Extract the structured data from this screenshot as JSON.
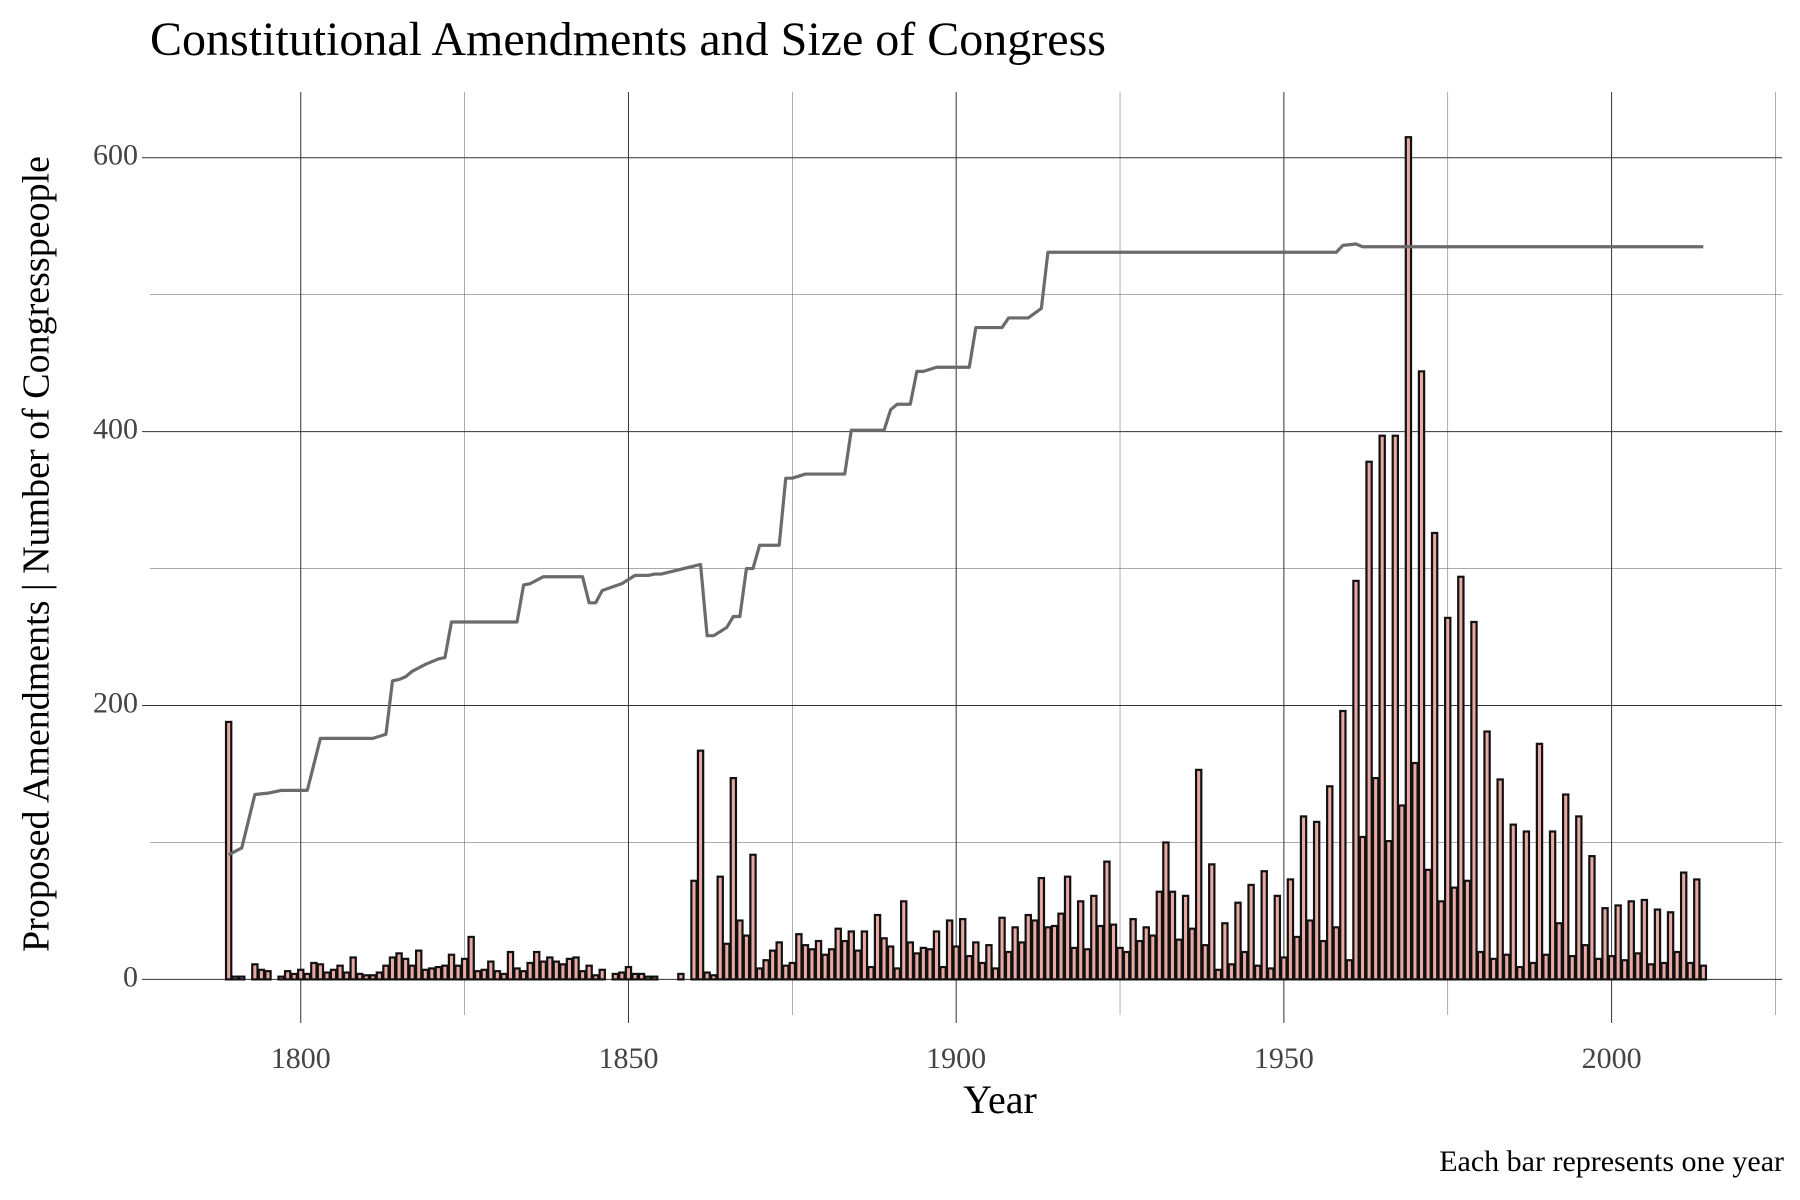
{
  "chart_data": {
    "type": "bar",
    "title": "Constitutional Amendments and Size of Congress",
    "xlabel": "Year",
    "ylabel": "Proposed Amendments | Number of Congresspeople",
    "caption": "Each bar represents one year",
    "x": [
      1789,
      1790,
      1791,
      1792,
      1793,
      1794,
      1795,
      1796,
      1797,
      1798,
      1799,
      1800,
      1801,
      1802,
      1803,
      1804,
      1805,
      1806,
      1807,
      1808,
      1809,
      1810,
      1811,
      1812,
      1813,
      1814,
      1815,
      1816,
      1817,
      1818,
      1819,
      1820,
      1821,
      1822,
      1823,
      1824,
      1825,
      1826,
      1827,
      1828,
      1829,
      1830,
      1831,
      1832,
      1833,
      1834,
      1835,
      1836,
      1837,
      1838,
      1839,
      1840,
      1841,
      1842,
      1843,
      1844,
      1845,
      1846,
      1847,
      1848,
      1849,
      1850,
      1851,
      1852,
      1853,
      1854,
      1855,
      1856,
      1857,
      1858,
      1859,
      1860,
      1861,
      1862,
      1863,
      1864,
      1865,
      1866,
      1867,
      1868,
      1869,
      1870,
      1871,
      1872,
      1873,
      1874,
      1875,
      1876,
      1877,
      1878,
      1879,
      1880,
      1881,
      1882,
      1883,
      1884,
      1885,
      1886,
      1887,
      1888,
      1889,
      1890,
      1891,
      1892,
      1893,
      1894,
      1895,
      1896,
      1897,
      1898,
      1899,
      1900,
      1901,
      1902,
      1903,
      1904,
      1905,
      1906,
      1907,
      1908,
      1909,
      1910,
      1911,
      1912,
      1913,
      1914,
      1915,
      1916,
      1917,
      1918,
      1919,
      1920,
      1921,
      1922,
      1923,
      1924,
      1925,
      1926,
      1927,
      1928,
      1929,
      1930,
      1931,
      1932,
      1933,
      1934,
      1935,
      1936,
      1937,
      1938,
      1939,
      1940,
      1941,
      1942,
      1943,
      1944,
      1945,
      1946,
      1947,
      1948,
      1949,
      1950,
      1951,
      1952,
      1953,
      1954,
      1955,
      1956,
      1957,
      1958,
      1959,
      1960,
      1961,
      1962,
      1963,
      1964,
      1965,
      1966,
      1967,
      1968,
      1969,
      1970,
      1971,
      1972,
      1973,
      1974,
      1975,
      1976,
      1977,
      1978,
      1979,
      1980,
      1981,
      1982,
      1983,
      1984,
      1985,
      1986,
      1987,
      1988,
      1989,
      1990,
      1991,
      1992,
      1993,
      1994,
      1995,
      1996,
      1997,
      1998,
      1999,
      2000,
      2001,
      2002,
      2003,
      2004,
      2005,
      2006,
      2007,
      2008,
      2009,
      2010,
      2011,
      2012,
      2013,
      2014
    ],
    "values": [
      188,
      2,
      2,
      0,
      11,
      7,
      6,
      0,
      2,
      6,
      4,
      7,
      4,
      12,
      11,
      5,
      7,
      10,
      5,
      16,
      4,
      3,
      3,
      5,
      10,
      16,
      19,
      15,
      10,
      21,
      7,
      8,
      9,
      10,
      18,
      10,
      15,
      31,
      6,
      7,
      13,
      6,
      4,
      20,
      8,
      6,
      12,
      20,
      13,
      16,
      13,
      11,
      15,
      16,
      6,
      10,
      3,
      7,
      0,
      4,
      5,
      9,
      4,
      4,
      2,
      2,
      null,
      null,
      null,
      4,
      null,
      72,
      167,
      5,
      3,
      75,
      26,
      147,
      43,
      32,
      91,
      8,
      14,
      21,
      27,
      10,
      12,
      33,
      25,
      22,
      28,
      18,
      22,
      37,
      28,
      35,
      21,
      35,
      9,
      47,
      30,
      24,
      8,
      57,
      27,
      19,
      23,
      22,
      35,
      9,
      43,
      24,
      44,
      17,
      27,
      12,
      25,
      8,
      45,
      20,
      38,
      27,
      47,
      43,
      74,
      38,
      39,
      48,
      75,
      23,
      57,
      22,
      61,
      39,
      86,
      40,
      23,
      20,
      44,
      28,
      38,
      32,
      64,
      100,
      64,
      29,
      61,
      37,
      153,
      25,
      84,
      7,
      41,
      11,
      56,
      20,
      69,
      10,
      79,
      8,
      61,
      16,
      73,
      31,
      119,
      43,
      115,
      28,
      141,
      38,
      196,
      14,
      291,
      104,
      378,
      147,
      397,
      101,
      397,
      127,
      615,
      158,
      444,
      80,
      326,
      57,
      264,
      67,
      294,
      72,
      261,
      20,
      181,
      15,
      146,
      18,
      113,
      9,
      108,
      12,
      172,
      18,
      108,
      41,
      135,
      17,
      119,
      25,
      90,
      15,
      52,
      17,
      54,
      14,
      57,
      19,
      58,
      11,
      51,
      12,
      49,
      20,
      78,
      12,
      73,
      10
    ],
    "color": "#e9a9a3",
    "edgecolor": "#111111",
    "line": {
      "type": "line",
      "color": "#6b6b6b",
      "x": [
        1789,
        1791,
        1793,
        1795,
        1797,
        1801,
        1803,
        1811,
        1813,
        1814,
        1815,
        1816,
        1817,
        1819,
        1821,
        1822,
        1823,
        1833,
        1834,
        1835,
        1837,
        1843,
        1844,
        1845,
        1846,
        1849,
        1851,
        1853,
        1854,
        1855,
        1861,
        1862,
        1863,
        1865,
        1866,
        1867,
        1868,
        1869,
        1870,
        1873,
        1874,
        1875,
        1877,
        1883,
        1884,
        1889,
        1890,
        1891,
        1893,
        1894,
        1895,
        1897,
        1902,
        1903,
        1907,
        1908,
        1911,
        1913,
        1914,
        1958,
        1959,
        1961,
        1962,
        2014
      ],
      "values": [
        91,
        96,
        135,
        136,
        138,
        138,
        176,
        176,
        179,
        218,
        219,
        221,
        225,
        230,
        234,
        235,
        261,
        261,
        288,
        289,
        294,
        294,
        275,
        275,
        284,
        289,
        295,
        295,
        296,
        296,
        303,
        251,
        251,
        257,
        265,
        265,
        300,
        300,
        317,
        317,
        366,
        366,
        369,
        369,
        401,
        401,
        416,
        420,
        420,
        444,
        444,
        447,
        447,
        476,
        476,
        483,
        483,
        490,
        531,
        531,
        536,
        537,
        535,
        535
      ]
    },
    "xlim": [
      1777,
      2026
    ],
    "ylim": [
      -26,
      648
    ],
    "xticks": [
      1800,
      1850,
      1900,
      1950,
      2000
    ],
    "yticks": [
      0,
      200,
      400,
      600
    ],
    "x_minor_grid": [
      1825,
      1875,
      1925,
      1975,
      2025
    ],
    "y_minor_grid": [
      100,
      300,
      500
    ],
    "grid": true
  }
}
